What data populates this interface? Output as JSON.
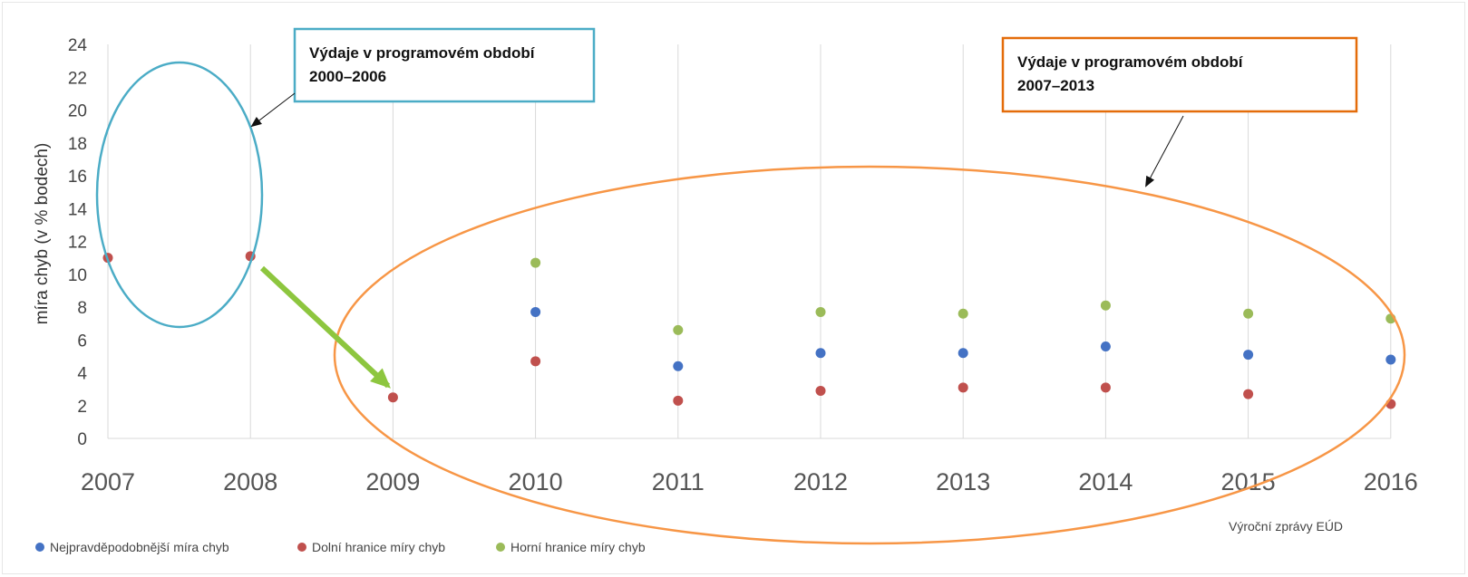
{
  "chart_data": {
    "type": "scatter",
    "title": "",
    "xlabel": "",
    "ylabel": "míra chyb (v % bodech)",
    "ylim": [
      0,
      24
    ],
    "yticks": [
      0,
      2,
      4,
      6,
      8,
      10,
      12,
      14,
      16,
      18,
      20,
      22,
      24
    ],
    "x": [
      "2007",
      "2008",
      "2009",
      "2010",
      "2011",
      "2012",
      "2013",
      "2014",
      "2015",
      "2016"
    ],
    "grid": "vertical",
    "legend_position": "bottom-left",
    "series": [
      {
        "name": "Nejpravděpodobnější míra chyb",
        "color": "#4472c4",
        "values": [
          null,
          null,
          null,
          7.7,
          4.4,
          5.2,
          5.2,
          5.6,
          5.1,
          4.8
        ]
      },
      {
        "name": "Dolní hranice míry chyb",
        "color": "#c0504d",
        "values": [
          11.0,
          11.1,
          2.5,
          4.7,
          2.3,
          2.9,
          3.1,
          3.1,
          2.7,
          2.1
        ]
      },
      {
        "name": "Horní hranice míry chyb",
        "color": "#9bbb59",
        "values": [
          null,
          null,
          null,
          10.7,
          6.6,
          7.7,
          7.6,
          8.1,
          7.6,
          7.3
        ]
      }
    ],
    "source_note": "Výroční zprávy EÚD",
    "annotations": [
      {
        "lines": [
          "Výdaje v programovém období",
          "2000–2006"
        ],
        "box_color": "#4bacc6",
        "ellipse_color": "#4bacc6"
      },
      {
        "lines": [
          "Výdaje v programovém období",
          "2007–2013"
        ],
        "box_color": "#e46c0a",
        "ellipse_color": "#f79646"
      }
    ],
    "arrow_color": "#8dc63f"
  }
}
